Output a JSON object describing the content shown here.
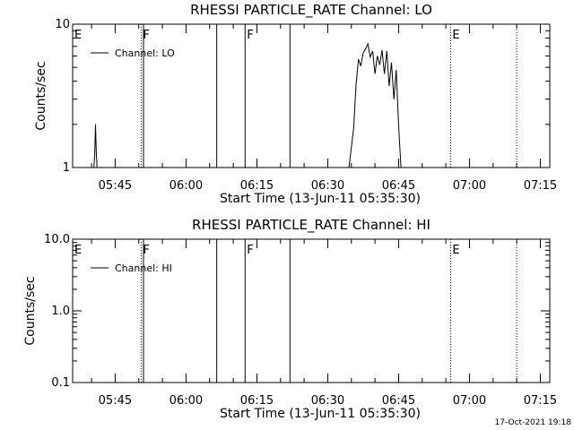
{
  "footer": {
    "timestamp": "17-Oct-2021 19:18"
  },
  "chart_data": [
    {
      "type": "line",
      "title": "RHESSI PARTICLE_RATE Channel: LO",
      "xlabel": "Start Time (13-Jun-11 05:35:30)",
      "ylabel": "Counts/sec",
      "y_scale": "log",
      "xlim": [
        "05:36",
        "07:17"
      ],
      "ylim": [
        1,
        10
      ],
      "x_ticks": [
        "05:45",
        "06:00",
        "06:15",
        "06:30",
        "06:45",
        "07:00",
        "07:15"
      ],
      "y_ticks": [
        "1",
        "10"
      ],
      "legend": {
        "placement": "top-left",
        "entries": [
          "Channel: LO"
        ]
      },
      "grid": false,
      "series": [
        {
          "name": "Channel: LO",
          "x": [
            "05:40:30",
            "05:40:40",
            "05:40:50",
            "05:41:00",
            "05:41:10",
            "06:34:30",
            "06:35:30",
            "06:36:00",
            "06:36:30",
            "06:37:00",
            "06:37:30",
            "06:38:00",
            "06:38:30",
            "06:39:00",
            "06:39:30",
            "06:40:00",
            "06:40:30",
            "06:41:00",
            "06:41:30",
            "06:42:00",
            "06:42:30",
            "06:43:00",
            "06:43:30",
            "06:44:00",
            "06:44:30",
            "06:45:00",
            "06:45:30"
          ],
          "y": [
            1.0,
            1.25,
            2.0,
            1.3,
            1.0,
            1.0,
            1.9,
            3.8,
            5.7,
            5.1,
            6.3,
            6.7,
            7.3,
            5.9,
            6.5,
            4.5,
            6.0,
            5.2,
            6.6,
            4.5,
            6.5,
            3.7,
            5.4,
            3.0,
            4.8,
            2.0,
            1.0
          ]
        }
      ],
      "markers": [
        {
          "time": "05:36:00",
          "label": "E",
          "style": "dotted"
        },
        {
          "time": "05:50:30",
          "label": "F",
          "style": "dotted"
        },
        {
          "time": "05:51:00",
          "label": "",
          "style": "solid"
        },
        {
          "time": "06:06:30",
          "label": "",
          "style": "solid"
        },
        {
          "time": "06:12:30",
          "label": "F",
          "style": "solid"
        },
        {
          "time": "06:22:00",
          "label": "",
          "style": "solid"
        },
        {
          "time": "06:56:00",
          "label": "E",
          "style": "dotted"
        },
        {
          "time": "07:10:00",
          "label": "",
          "style": "dotted"
        }
      ]
    },
    {
      "type": "line",
      "title": "RHESSI PARTICLE_RATE Channel: HI",
      "xlabel": "Start Time (13-Jun-11 05:35:30)",
      "ylabel": "Counts/sec",
      "y_scale": "log",
      "xlim": [
        "05:36",
        "07:17"
      ],
      "ylim": [
        0.1,
        10
      ],
      "x_ticks": [
        "05:45",
        "06:00",
        "06:15",
        "06:30",
        "06:45",
        "07:00",
        "07:15"
      ],
      "y_ticks": [
        "0.1",
        "1.0",
        "10.0"
      ],
      "legend": {
        "placement": "top-left",
        "entries": [
          "Channel: HI"
        ]
      },
      "grid": false,
      "series": [
        {
          "name": "Channel: HI",
          "x": [],
          "y": []
        }
      ],
      "markers": [
        {
          "time": "05:36:00",
          "label": "E",
          "style": "dotted"
        },
        {
          "time": "05:50:30",
          "label": "F",
          "style": "dotted"
        },
        {
          "time": "05:51:00",
          "label": "",
          "style": "solid"
        },
        {
          "time": "06:06:30",
          "label": "",
          "style": "solid"
        },
        {
          "time": "06:12:30",
          "label": "F",
          "style": "solid"
        },
        {
          "time": "06:22:00",
          "label": "",
          "style": "solid"
        },
        {
          "time": "06:56:00",
          "label": "E",
          "style": "dotted"
        },
        {
          "time": "07:10:00",
          "label": "",
          "style": "dotted"
        }
      ]
    }
  ]
}
